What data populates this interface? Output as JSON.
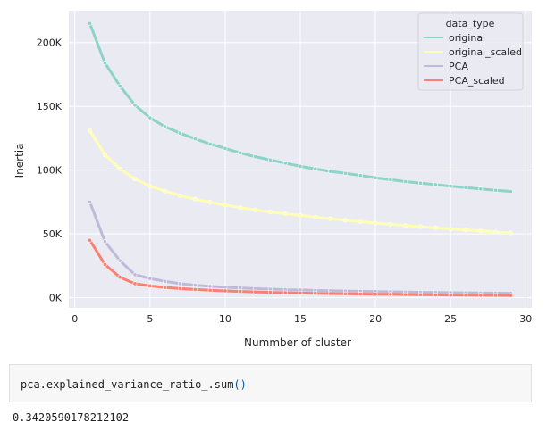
{
  "chart_data": {
    "type": "line",
    "title": "",
    "xlabel": "Nummber of cluster",
    "ylabel": "Inertia",
    "xlim": [
      -0.4,
      30.4
    ],
    "ylim": [
      -8000,
      225000
    ],
    "x_ticks": [
      0,
      5,
      10,
      15,
      20,
      25,
      30
    ],
    "y_ticks": [
      0,
      50000,
      100000,
      150000,
      200000
    ],
    "y_tick_labels": [
      "0K",
      "50K",
      "100K",
      "150K",
      "200K"
    ],
    "grid": true,
    "legend_title": "data_type",
    "legend_position": "top-right",
    "x": [
      1,
      2,
      3,
      4,
      5,
      6,
      7,
      8,
      9,
      10,
      11,
      12,
      13,
      14,
      15,
      16,
      17,
      18,
      19,
      20,
      21,
      22,
      23,
      24,
      25,
      26,
      27,
      28,
      29
    ],
    "series": [
      {
        "name": "original",
        "color": "#8dd3c7",
        "values": [
          215000,
          184000,
          166000,
          151000,
          141000,
          134000,
          129000,
          124500,
          120500,
          117000,
          113500,
          110500,
          108000,
          105500,
          103000,
          101000,
          99000,
          97500,
          95800,
          94000,
          92500,
          91000,
          89800,
          88600,
          87400,
          86300,
          85200,
          84200,
          83300
        ]
      },
      {
        "name": "original_scaled",
        "color": "#ffffb3",
        "values": [
          131000,
          112000,
          101000,
          93000,
          87500,
          83500,
          80000,
          77200,
          74800,
          72600,
          70600,
          68800,
          67200,
          65800,
          64500,
          63200,
          61900,
          60700,
          59600,
          58500,
          57500,
          56500,
          55600,
          54700,
          53900,
          53100,
          52300,
          51500,
          50800
        ]
      },
      {
        "name": "PCA",
        "color": "#bebada",
        "values": [
          75000,
          44000,
          29000,
          18000,
          15000,
          12800,
          11000,
          9800,
          8900,
          8200,
          7600,
          7100,
          6700,
          6300,
          6000,
          5700,
          5400,
          5200,
          5000,
          4800,
          4600,
          4400,
          4200,
          4100,
          3900,
          3800,
          3700,
          3600,
          3500
        ]
      },
      {
        "name": "PCA_scaled",
        "color": "#fb8072",
        "values": [
          45000,
          26000,
          16000,
          11000,
          9200,
          8000,
          7100,
          6400,
          5800,
          5300,
          4900,
          4500,
          4200,
          3900,
          3650,
          3400,
          3200,
          3000,
          2850,
          2700,
          2550,
          2400,
          2300,
          2200,
          2100,
          2000,
          1900,
          1800,
          1700
        ]
      }
    ]
  },
  "code_cell": {
    "prefix": "pca.explained_variance_ratio_.sum",
    "parens": "()"
  },
  "output_text": "0.3420590178212102"
}
